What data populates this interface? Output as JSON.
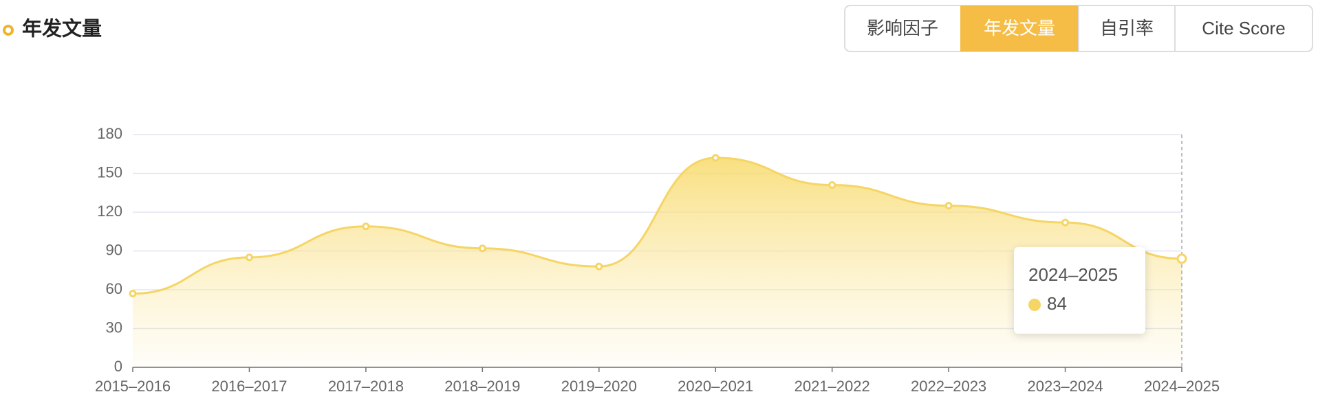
{
  "header": {
    "title": "年发文量",
    "tabs": [
      "影响因子",
      "年发文量",
      "自引率",
      "Cite Score"
    ]
  },
  "chart_data": {
    "type": "line",
    "area": true,
    "smooth": true,
    "color": "#f5d565",
    "categories": [
      "2015–2016",
      "2016–2017",
      "2017–2018",
      "2018–2019",
      "2019–2020",
      "2020–2021",
      "2021–2022",
      "2022–2023",
      "2023–2024",
      "2024–2025"
    ],
    "values": [
      57,
      85,
      109,
      92,
      78,
      162,
      141,
      125,
      112,
      84
    ],
    "ylim": [
      0,
      180
    ],
    "yticks": [
      0,
      30,
      60,
      90,
      120,
      150,
      180
    ],
    "grid": true
  }
}
